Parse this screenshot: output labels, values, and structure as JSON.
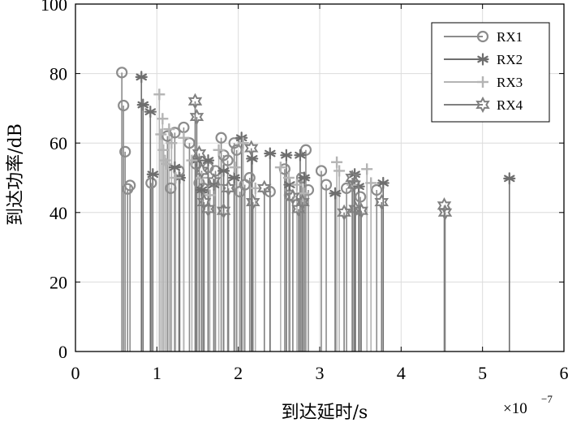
{
  "chart_data": {
    "type": "stem",
    "xlabel": "到达延时/s",
    "ylabel": "到达功率/dB",
    "x_exponent_label": "×10",
    "x_exponent_power": "−7",
    "xlim": [
      0,
      6
    ],
    "ylim": [
      0,
      100
    ],
    "x_ticks": [
      0,
      1,
      2,
      3,
      4,
      5,
      6
    ],
    "y_ticks": [
      0,
      20,
      40,
      60,
      80,
      100
    ],
    "x_tick_labels": [
      "0",
      "1",
      "2",
      "3",
      "4",
      "5",
      "6"
    ],
    "y_tick_labels": [
      "0",
      "20",
      "40",
      "60",
      "80",
      "100"
    ],
    "grid": true,
    "legend_position": "top-right",
    "series": [
      {
        "name": "RX1",
        "marker": "circle",
        "color": "#8c8c8c",
        "x": [
          0.57,
          0.59,
          0.61,
          0.64,
          0.67,
          0.93,
          1.13,
          1.17,
          1.22,
          1.27,
          1.33,
          1.4,
          1.48,
          1.52,
          1.57,
          1.63,
          1.72,
          1.79,
          1.82,
          1.87,
          1.95,
          1.98,
          2.02,
          2.08,
          2.14,
          2.39,
          2.57,
          2.63,
          2.78,
          2.83,
          2.86,
          3.02,
          3.08,
          3.33,
          3.5,
          3.7
        ],
        "y": [
          80.3,
          70.8,
          57.5,
          46.8,
          47.8,
          48.5,
          62.0,
          47.0,
          63.0,
          52.0,
          64.5,
          60.0,
          54.0,
          48.5,
          47.0,
          53.0,
          52.0,
          61.5,
          56.5,
          55.0,
          60.0,
          58.0,
          46.0,
          48.0,
          50.0,
          46.0,
          52.5,
          45.0,
          50.0,
          58.0,
          46.5,
          52.0,
          48.0,
          47.0,
          44.5,
          46.5
        ]
      },
      {
        "name": "RX2",
        "marker": "asterisk",
        "color": "#6e6e6e",
        "x": [
          0.81,
          0.83,
          0.92,
          0.95,
          1.22,
          1.28,
          1.49,
          1.55,
          1.63,
          1.7,
          1.82,
          1.95,
          2.04,
          2.17,
          2.39,
          2.59,
          2.63,
          2.76,
          2.81,
          3.19,
          3.43,
          3.48,
          3.78,
          5.33
        ],
        "y": [
          79.0,
          71.0,
          69.0,
          51.0,
          53.0,
          50.0,
          55.0,
          46.5,
          55.0,
          48.0,
          52.0,
          50.0,
          61.5,
          55.5,
          57.0,
          56.5,
          48.0,
          56.5,
          50.0,
          45.5,
          51.0,
          47.5,
          48.5,
          49.8
        ]
      },
      {
        "name": "RX3",
        "marker": "plus",
        "color": "#b4b4b4",
        "x": [
          1.03,
          1.05,
          1.07,
          1.08,
          1.1,
          1.12,
          1.15,
          1.18,
          1.23,
          1.33,
          1.43,
          1.55,
          1.65,
          1.76,
          1.96,
          2.06,
          2.21,
          2.52,
          2.62,
          2.72,
          2.8,
          3.21,
          3.24,
          3.4,
          3.58,
          3.63
        ],
        "y": [
          74.0,
          62.5,
          67.0,
          58.0,
          55.0,
          54.0,
          64.0,
          60.0,
          50.0,
          61.5,
          55.0,
          50.0,
          45.0,
          58.0,
          53.0,
          60.0,
          47.0,
          53.0,
          50.0,
          48.0,
          45.5,
          54.5,
          52.0,
          48.0,
          52.5,
          48.5
        ]
      },
      {
        "name": "RX4",
        "marker": "hexagram",
        "color": "#808080",
        "x": [
          1.47,
          1.49,
          1.52,
          1.55,
          1.58,
          1.63,
          1.7,
          1.82,
          1.88,
          2.16,
          2.18,
          2.32,
          2.67,
          2.74,
          2.79,
          3.3,
          3.4,
          3.42,
          3.44,
          3.51,
          3.76,
          4.53,
          4.54
        ],
        "y": [
          72.0,
          67.5,
          57.0,
          52.0,
          43.0,
          41.0,
          49.0,
          40.5,
          47.0,
          58.5,
          43.0,
          47.0,
          44.5,
          41.0,
          43.0,
          40.0,
          50.0,
          48.0,
          41.0,
          40.5,
          43.0,
          42.0,
          40.0
        ]
      }
    ]
  }
}
